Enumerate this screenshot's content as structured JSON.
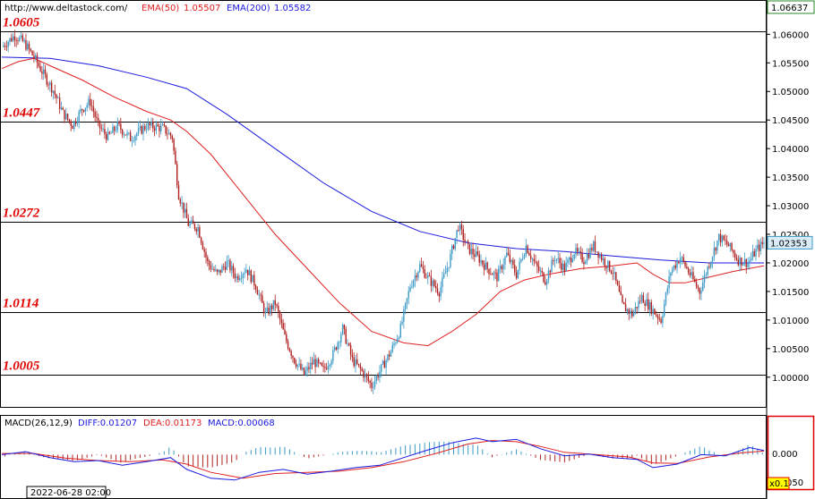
{
  "header": {
    "url": "http://www.deltastock.com/",
    "ema50_label": "EMA(50)",
    "ema50_value": "1.05507",
    "ema200_label": "EMA(200)",
    "ema200_value": "1.05582"
  },
  "colors": {
    "ema50": "#e02020",
    "ema200": "#1a1add",
    "bull": "#3d9bc7",
    "bear": "#b02020",
    "level_text": "#e00000",
    "price_box_bg": "#d9ecf7"
  },
  "macd_header": {
    "name": "MACD(26,12,9)",
    "diff": "DIFF:0.01207",
    "dea": "DEA:0.01173",
    "macd": "MACD:0.00068"
  },
  "date_label": "2022-06-28 02:00",
  "price_box_top": "1.06637",
  "current_price": "1.02353",
  "scale_factor": "x0.1",
  "macd_axis": {
    "ticks": [
      "0.000"
    ],
    "partial_label": "050"
  },
  "chart_data": {
    "type": "candlestick",
    "y_axis_ticks": [
      "1.06000",
      "1.05500",
      "1.05000",
      "1.04500",
      "1.04000",
      "1.03500",
      "1.03000",
      "1.02500",
      "1.02000",
      "1.01500",
      "1.01000",
      "1.00500",
      "1.00000"
    ],
    "ylim": [
      0.9948,
      1.066
    ],
    "levels": [
      {
        "label": "1.0605",
        "value": 1.0605
      },
      {
        "label": "1.0447",
        "value": 1.0447
      },
      {
        "label": "1.0272",
        "value": 1.0272
      },
      {
        "label": "1.0114",
        "value": 1.0114
      },
      {
        "label": "1.0005",
        "value": 1.0005
      }
    ],
    "close_path": [
      [
        0,
        1.0578
      ],
      [
        8,
        1.0598
      ],
      [
        14,
        1.0585
      ],
      [
        20,
        1.056
      ],
      [
        26,
        1.053
      ],
      [
        32,
        1.0502
      ],
      [
        38,
        1.0462
      ],
      [
        44,
        1.0441
      ],
      [
        50,
        1.047
      ],
      [
        55,
        1.0482
      ],
      [
        60,
        1.044
      ],
      [
        66,
        1.042
      ],
      [
        72,
        1.044
      ],
      [
        80,
        1.0418
      ],
      [
        90,
        1.044
      ],
      [
        100,
        1.0436
      ],
      [
        106,
        1.042
      ],
      [
        110,
        1.032
      ],
      [
        116,
        1.0268
      ],
      [
        122,
        1.0262
      ],
      [
        128,
        1.02
      ],
      [
        134,
        1.018
      ],
      [
        140,
        1.02
      ],
      [
        146,
        1.0175
      ],
      [
        152,
        1.019
      ],
      [
        158,
        1.016
      ],
      [
        164,
        1.011
      ],
      [
        170,
        1.013
      ],
      [
        176,
        1.007
      ],
      [
        182,
        1.003
      ],
      [
        188,
        1.0005
      ],
      [
        194,
        1.0028
      ],
      [
        200,
        1.0012
      ],
      [
        206,
        1.004
      ],
      [
        212,
        1.0085
      ],
      [
        218,
        1.003
      ],
      [
        224,
        1.001
      ],
      [
        230,
        0.9985
      ],
      [
        236,
        1.0015
      ],
      [
        242,
        1.0045
      ],
      [
        248,
        1.0085
      ],
      [
        254,
        1.016
      ],
      [
        260,
        1.0195
      ],
      [
        266,
        1.017
      ],
      [
        272,
        1.015
      ],
      [
        278,
        1.02
      ],
      [
        284,
        1.0265
      ],
      [
        290,
        1.0225
      ],
      [
        296,
        1.021
      ],
      [
        302,
        1.019
      ],
      [
        308,
        1.0175
      ],
      [
        314,
        1.0215
      ],
      [
        320,
        1.018
      ],
      [
        326,
        1.023
      ],
      [
        332,
        1.0195
      ],
      [
        338,
        1.017
      ],
      [
        344,
        1.021
      ],
      [
        350,
        1.019
      ],
      [
        356,
        1.022
      ],
      [
        362,
        1.0205
      ],
      [
        368,
        1.023
      ],
      [
        374,
        1.0205
      ],
      [
        380,
        1.0185
      ],
      [
        386,
        1.0125
      ],
      [
        392,
        1.011
      ],
      [
        398,
        1.014
      ],
      [
        404,
        1.012
      ],
      [
        410,
        1.01
      ],
      [
        416,
        1.0185
      ],
      [
        422,
        1.021
      ],
      [
        428,
        1.018
      ],
      [
        434,
        1.015
      ],
      [
        440,
        1.02
      ],
      [
        446,
        1.0245
      ],
      [
        452,
        1.023
      ],
      [
        458,
        1.0205
      ],
      [
        464,
        1.02
      ],
      [
        470,
        1.0225
      ],
      [
        474,
        1.0235
      ]
    ],
    "ema50_path": [
      [
        0,
        1.054
      ],
      [
        10,
        1.0552
      ],
      [
        20,
        1.0558
      ],
      [
        30,
        1.0545
      ],
      [
        50,
        1.052
      ],
      [
        70,
        1.049
      ],
      [
        90,
        1.0465
      ],
      [
        105,
        1.045
      ],
      [
        115,
        1.043
      ],
      [
        130,
        1.039
      ],
      [
        150,
        1.032
      ],
      [
        170,
        1.025
      ],
      [
        190,
        1.019
      ],
      [
        210,
        1.013
      ],
      [
        230,
        1.008
      ],
      [
        250,
        1.006
      ],
      [
        265,
        1.0055
      ],
      [
        280,
        1.008
      ],
      [
        295,
        1.011
      ],
      [
        310,
        1.015
      ],
      [
        325,
        1.017
      ],
      [
        340,
        1.018
      ],
      [
        360,
        1.019
      ],
      [
        380,
        1.0195
      ],
      [
        395,
        1.02
      ],
      [
        405,
        1.018
      ],
      [
        415,
        1.0165
      ],
      [
        425,
        1.0165
      ],
      [
        440,
        1.0175
      ],
      [
        455,
        1.0185
      ],
      [
        474,
        1.0195
      ]
    ],
    "ema200_path": [
      [
        0,
        1.056
      ],
      [
        30,
        1.0558
      ],
      [
        60,
        1.0545
      ],
      [
        90,
        1.0525
      ],
      [
        115,
        1.0505
      ],
      [
        140,
        1.046
      ],
      [
        170,
        1.04
      ],
      [
        200,
        1.034
      ],
      [
        230,
        1.029
      ],
      [
        260,
        1.0255
      ],
      [
        290,
        1.0235
      ],
      [
        320,
        1.0225
      ],
      [
        350,
        1.022
      ],
      [
        380,
        1.0212
      ],
      [
        410,
        1.0205
      ],
      [
        440,
        1.02
      ],
      [
        474,
        1.02
      ]
    ]
  },
  "macd_data": {
    "ylim": [
      -0.006,
      0.004
    ],
    "diff_path": [
      [
        0,
        0.0
      ],
      [
        15,
        0.0005
      ],
      [
        30,
        -0.0005
      ],
      [
        45,
        -0.0012
      ],
      [
        60,
        -0.001
      ],
      [
        75,
        -0.0018
      ],
      [
        90,
        -0.0012
      ],
      [
        105,
        -0.0005
      ],
      [
        115,
        -0.0025
      ],
      [
        130,
        -0.004
      ],
      [
        145,
        -0.0043
      ],
      [
        160,
        -0.003
      ],
      [
        175,
        -0.0025
      ],
      [
        190,
        -0.0033
      ],
      [
        205,
        -0.0028
      ],
      [
        220,
        -0.0022
      ],
      [
        235,
        -0.0018
      ],
      [
        250,
        -0.0005
      ],
      [
        265,
        0.0008
      ],
      [
        280,
        0.002
      ],
      [
        295,
        0.0028
      ],
      [
        305,
        0.0022
      ],
      [
        320,
        0.0026
      ],
      [
        335,
        0.001
      ],
      [
        350,
        -0.0002
      ],
      [
        365,
        0.0001
      ],
      [
        380,
        -0.0005
      ],
      [
        395,
        -0.0008
      ],
      [
        405,
        -0.0022
      ],
      [
        420,
        -0.0016
      ],
      [
        435,
        0.0
      ],
      [
        450,
        -0.0002
      ],
      [
        465,
        0.0012
      ],
      [
        474,
        0.0007
      ]
    ],
    "dea_path": [
      [
        0,
        0.0002
      ],
      [
        20,
        0.0002
      ],
      [
        40,
        -0.0006
      ],
      [
        60,
        -0.001
      ],
      [
        80,
        -0.0012
      ],
      [
        100,
        -0.0009
      ],
      [
        115,
        -0.0016
      ],
      [
        130,
        -0.003
      ],
      [
        150,
        -0.004
      ],
      [
        170,
        -0.0032
      ],
      [
        190,
        -0.003
      ],
      [
        210,
        -0.0028
      ],
      [
        230,
        -0.0022
      ],
      [
        250,
        -0.0012
      ],
      [
        270,
        0.0002
      ],
      [
        290,
        0.0018
      ],
      [
        305,
        0.0024
      ],
      [
        320,
        0.0022
      ],
      [
        335,
        0.0014
      ],
      [
        350,
        0.0004
      ],
      [
        370,
        0.0
      ],
      [
        390,
        -0.0004
      ],
      [
        405,
        -0.0014
      ],
      [
        420,
        -0.0015
      ],
      [
        440,
        -0.0004
      ],
      [
        460,
        0.0003
      ],
      [
        474,
        0.0006
      ]
    ]
  }
}
